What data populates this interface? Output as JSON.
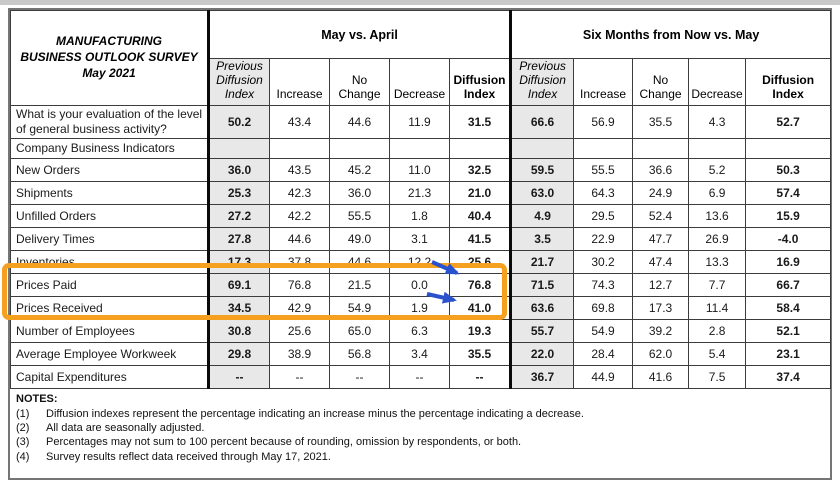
{
  "title": [
    "MANUFACTURING",
    "BUSINESS OUTLOOK SURVEY",
    "May 2021"
  ],
  "groups": {
    "may": "May vs. April",
    "six": "Six Months from Now vs. May"
  },
  "columns": {
    "prev": "Previous Diffusion Index",
    "increase": "Increase",
    "no_change": "No Change",
    "decrease": "Decrease",
    "diffusion": "Diffusion Index"
  },
  "rows": [
    {
      "label": "What is your evaluation of the level of general business activity?",
      "type": "tall",
      "may": [
        "50.2",
        "43.4",
        "44.6",
        "11.9",
        "31.5"
      ],
      "six": [
        "66.6",
        "56.9",
        "35.5",
        "4.3",
        "52.7"
      ]
    },
    {
      "label": "Company Business Indicators",
      "type": "section",
      "may": [
        "",
        "",
        "",
        "",
        ""
      ],
      "six": [
        "",
        "",
        "",
        "",
        ""
      ]
    },
    {
      "label": "New Orders",
      "may": [
        "36.0",
        "43.5",
        "45.2",
        "11.0",
        "32.5"
      ],
      "six": [
        "59.5",
        "55.5",
        "36.6",
        "5.2",
        "50.3"
      ]
    },
    {
      "label": "Shipments",
      "may": [
        "25.3",
        "42.3",
        "36.0",
        "21.3",
        "21.0"
      ],
      "six": [
        "63.0",
        "64.3",
        "24.9",
        "6.9",
        "57.4"
      ]
    },
    {
      "label": "Unfilled Orders",
      "may": [
        "27.2",
        "42.2",
        "55.5",
        "1.8",
        "40.4"
      ],
      "six": [
        "4.9",
        "29.5",
        "52.4",
        "13.6",
        "15.9"
      ]
    },
    {
      "label": "Delivery Times",
      "may": [
        "27.8",
        "44.6",
        "49.0",
        "3.1",
        "41.5"
      ],
      "six": [
        "3.5",
        "22.9",
        "47.7",
        "26.9",
        "-4.0"
      ]
    },
    {
      "label": "Inventories",
      "may": [
        "17.3",
        "37.8",
        "44.6",
        "12.2",
        "25.6"
      ],
      "six": [
        "21.7",
        "30.2",
        "47.4",
        "13.3",
        "16.9"
      ]
    },
    {
      "label": "Prices Paid",
      "highlighted": true,
      "may": [
        "69.1",
        "76.8",
        "21.5",
        "0.0",
        "76.8"
      ],
      "six": [
        "71.5",
        "74.3",
        "12.7",
        "7.7",
        "66.7"
      ]
    },
    {
      "label": "Prices Received",
      "highlighted": true,
      "may": [
        "34.5",
        "42.9",
        "54.9",
        "1.9",
        "41.0"
      ],
      "six": [
        "63.6",
        "69.8",
        "17.3",
        "11.4",
        "58.4"
      ]
    },
    {
      "label": "Number of Employees",
      "may": [
        "30.8",
        "25.6",
        "65.0",
        "6.3",
        "19.3"
      ],
      "six": [
        "55.7",
        "54.9",
        "39.2",
        "2.8",
        "52.1"
      ]
    },
    {
      "label": "Average Employee Workweek",
      "may": [
        "29.8",
        "38.9",
        "56.8",
        "3.4",
        "35.5"
      ],
      "six": [
        "22.0",
        "28.4",
        "62.0",
        "5.4",
        "23.1"
      ]
    },
    {
      "label": "Capital Expenditures",
      "may": [
        "--",
        "--",
        "--",
        "--",
        "--"
      ],
      "six": [
        "36.7",
        "44.9",
        "41.6",
        "7.5",
        "37.4"
      ]
    }
  ],
  "notes": {
    "heading": "NOTES:",
    "items": [
      {
        "num": "(1)",
        "text": "Diffusion indexes represent the percentage indicating an increase minus the percentage indicating a decrease."
      },
      {
        "num": "(2)",
        "text": "All data are seasonally adjusted."
      },
      {
        "num": "(3)",
        "text": "Percentages may not sum to 100 percent because of rounding, omission by respondents, or both."
      },
      {
        "num": "(4)",
        "text": "Survey results reflect data received through May 17, 2021."
      }
    ]
  },
  "annotations": {
    "highlight_color": "#F5A11F",
    "arrow_color": "#2A52CC",
    "highlighted_rows": [
      "Prices Paid",
      "Prices Received"
    ],
    "arrow_targets": [
      "76.8",
      "41.0"
    ]
  }
}
